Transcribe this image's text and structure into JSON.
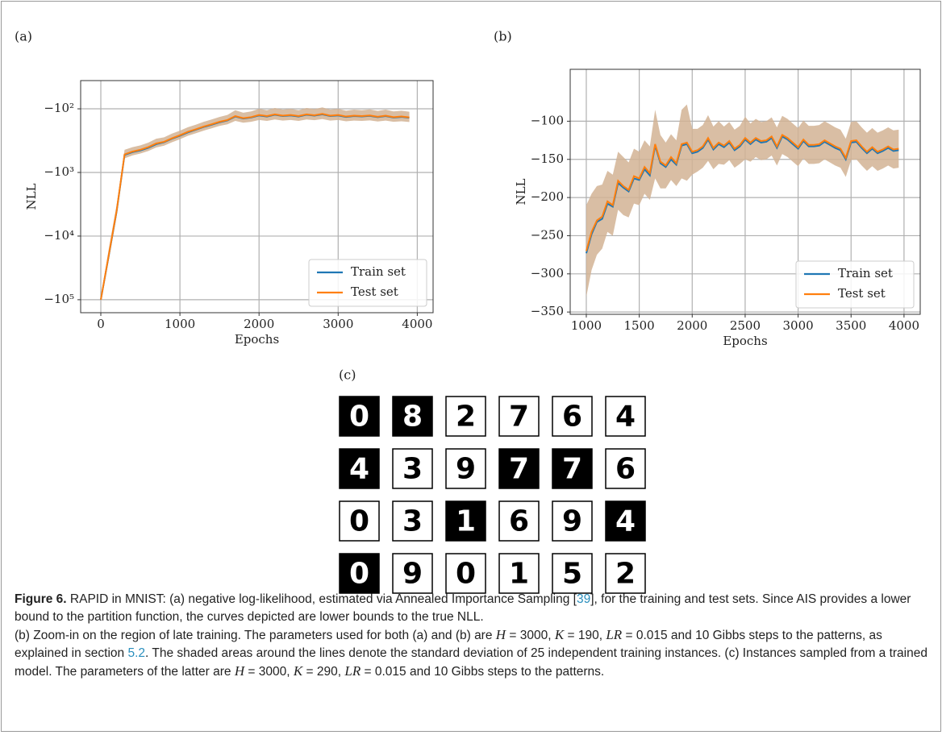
{
  "panel_labels": [
    "(a)",
    "(b)",
    "(c)"
  ],
  "chart_data": [
    {
      "type": "line",
      "xlabel": "Epochs",
      "ylabel": "NLL",
      "yscale": "symlog",
      "grid": true,
      "legend": "lower right",
      "band_color": "#d2b394",
      "xlim": [
        -255,
        4200
      ],
      "xticks": [
        0,
        1000,
        2000,
        3000,
        4000
      ],
      "ylim": [
        -160000,
        -36
      ],
      "yticks": [
        {
          "value": -100,
          "label": "−10²"
        },
        {
          "value": -1000,
          "label": "−10³"
        },
        {
          "value": -10000,
          "label": "−10⁴"
        },
        {
          "value": -100000,
          "label": "−10⁵"
        }
      ],
      "x": [
        0,
        100,
        200,
        300,
        400,
        500,
        600,
        700,
        800,
        900,
        1000,
        1100,
        1200,
        1300,
        1400,
        1500,
        1600,
        1700,
        1800,
        1900,
        2000,
        2100,
        2200,
        2300,
        2400,
        2500,
        2600,
        2700,
        2800,
        2900,
        3000,
        3100,
        3200,
        3300,
        3400,
        3500,
        3600,
        3700,
        3800,
        3900
      ],
      "series": [
        {
          "name": "Train set",
          "color": "#1f77b4",
          "values": [
            -100000,
            -20500,
            -4100,
            -530,
            -480,
            -450,
            -410,
            -360,
            -335,
            -295,
            -265,
            -235,
            -213,
            -193,
            -178,
            -163,
            -152,
            -132,
            -142,
            -137,
            -127,
            -132,
            -124,
            -130,
            -127,
            -132,
            -124,
            -128,
            -122,
            -130,
            -127,
            -134,
            -130,
            -132,
            -129,
            -135,
            -130,
            -137,
            -134,
            -138
          ]
        },
        {
          "name": "Test set",
          "color": "#ff7f0e",
          "values": [
            -100000,
            -20000,
            -4000,
            -520,
            -470,
            -440,
            -400,
            -350,
            -330,
            -290,
            -260,
            -230,
            -210,
            -190,
            -175,
            -160,
            -150,
            -130,
            -140,
            -135,
            -125,
            -130,
            -122,
            -128,
            -125,
            -130,
            -122,
            -126,
            -120,
            -128,
            -125,
            -132,
            -128,
            -130,
            -127,
            -133,
            -128,
            -135,
            -132,
            -136
          ],
          "std": [
            10000,
            4000,
            800,
            80,
            70,
            65,
            60,
            55,
            50,
            45,
            40,
            35,
            32,
            30,
            28,
            26,
            25,
            25,
            25,
            25,
            25,
            25,
            25,
            25,
            25,
            25,
            25,
            25,
            25,
            25,
            25,
            25,
            25,
            25,
            25,
            25,
            25,
            25,
            25,
            25
          ]
        }
      ]
    },
    {
      "type": "line",
      "xlabel": "Epochs",
      "ylabel": "NLL",
      "yscale": "linear",
      "grid": true,
      "legend": "lower right",
      "band_color": "#d2b394",
      "xlim": [
        848,
        4153
      ],
      "xticks": [
        1000,
        1500,
        2000,
        2500,
        3000,
        3500,
        4000
      ],
      "ylim": [
        -353,
        -32
      ],
      "yticks": [
        {
          "value": -100,
          "label": "−100"
        },
        {
          "value": -150,
          "label": "−150"
        },
        {
          "value": -200,
          "label": "−200"
        },
        {
          "value": -250,
          "label": "−250"
        },
        {
          "value": -300,
          "label": "−300"
        },
        {
          "value": -350,
          "label": "−350"
        }
      ],
      "x": [
        1000,
        1050,
        1100,
        1150,
        1200,
        1250,
        1300,
        1350,
        1400,
        1450,
        1500,
        1550,
        1600,
        1650,
        1700,
        1750,
        1800,
        1850,
        1900,
        1950,
        2000,
        2050,
        2100,
        2150,
        2200,
        2250,
        2300,
        2350,
        2400,
        2450,
        2500,
        2550,
        2600,
        2650,
        2700,
        2750,
        2800,
        2850,
        2900,
        2950,
        3000,
        3050,
        3100,
        3150,
        3200,
        3250,
        3300,
        3350,
        3400,
        3450,
        3500,
        3550,
        3600,
        3650,
        3700,
        3750,
        3800,
        3850,
        3900,
        3950
      ],
      "series": [
        {
          "name": "Train set",
          "color": "#1f77b4",
          "values": [
            -273,
            -248,
            -232,
            -228,
            -208,
            -212,
            -181,
            -187,
            -192,
            -175,
            -177,
            -163,
            -171,
            -132,
            -155,
            -160,
            -150,
            -157,
            -132,
            -130,
            -142,
            -140,
            -135,
            -124,
            -137,
            -130,
            -134,
            -128,
            -138,
            -133,
            -124,
            -130,
            -124,
            -128,
            -127,
            -122,
            -135,
            -120,
            -124,
            -130,
            -136,
            -126,
            -133,
            -133,
            -132,
            -127,
            -131,
            -135,
            -138,
            -150,
            -128,
            -127,
            -135,
            -142,
            -136,
            -142,
            -139,
            -135,
            -139,
            -138
          ]
        },
        {
          "name": "Test set",
          "color": "#ff7f0e",
          "values": [
            -270,
            -245,
            -230,
            -225,
            -205,
            -210,
            -178,
            -185,
            -190,
            -172,
            -175,
            -160,
            -168,
            -130,
            -153,
            -158,
            -147,
            -155,
            -130,
            -128,
            -140,
            -138,
            -133,
            -122,
            -135,
            -128,
            -132,
            -126,
            -136,
            -131,
            -122,
            -128,
            -122,
            -126,
            -125,
            -120,
            -133,
            -118,
            -122,
            -128,
            -134,
            -124,
            -131,
            -131,
            -130,
            -125,
            -129,
            -133,
            -136,
            -148,
            -126,
            -125,
            -133,
            -140,
            -134,
            -140,
            -137,
            -133,
            -137,
            -136
          ],
          "std": [
            60,
            50,
            45,
            42,
            40,
            40,
            38,
            38,
            36,
            36,
            35,
            35,
            35,
            45,
            35,
            30,
            30,
            30,
            45,
            50,
            30,
            28,
            28,
            30,
            28,
            28,
            25,
            25,
            25,
            25,
            28,
            25,
            25,
            25,
            25,
            25,
            25,
            25,
            25,
            25,
            25,
            25,
            25,
            25,
            25,
            25,
            25,
            25,
            25,
            25,
            25,
            25,
            25,
            25,
            25,
            25,
            25,
            25,
            25,
            25
          ]
        }
      ]
    }
  ],
  "samples": {
    "digits": [
      [
        0,
        8,
        2,
        7,
        6,
        4
      ],
      [
        4,
        3,
        9,
        7,
        7,
        6
      ],
      [
        0,
        3,
        1,
        6,
        9,
        4
      ],
      [
        0,
        9,
        0,
        1,
        5,
        2
      ]
    ],
    "inverted": [
      [
        true,
        true,
        false,
        false,
        false,
        false
      ],
      [
        true,
        false,
        false,
        true,
        true,
        false
      ],
      [
        false,
        false,
        true,
        false,
        false,
        true
      ],
      [
        true,
        false,
        false,
        false,
        false,
        false
      ]
    ]
  },
  "caption": {
    "label": "Figure 6.",
    "parts": [
      "RAPID in MNIST: (a) negative log-likelihood, estimated via Annealed Importance Sampling [",
      "39",
      "], for the training and test sets. Since AIS provides a lower bound to the partition function, the curves depicted are lower bounds to the true NLL.",
      "(b) Zoom-in on the region of late training. The parameters used for both (a) and (b) are ",
      "H",
      " = 3000, ",
      "K",
      " = 190, ",
      "LR",
      " = 0.015 and 10 Gibbs steps to the patterns, as explained in section ",
      "5.2",
      ". The shaded areas around the lines denote the standard deviation of 25 independent training instances. (c) Instances sampled from a trained model. The parameters of the latter are ",
      "H",
      " = 3000, ",
      "K",
      " = 290, ",
      "LR",
      " = 0.015 and 10 Gibbs steps to the patterns."
    ]
  }
}
